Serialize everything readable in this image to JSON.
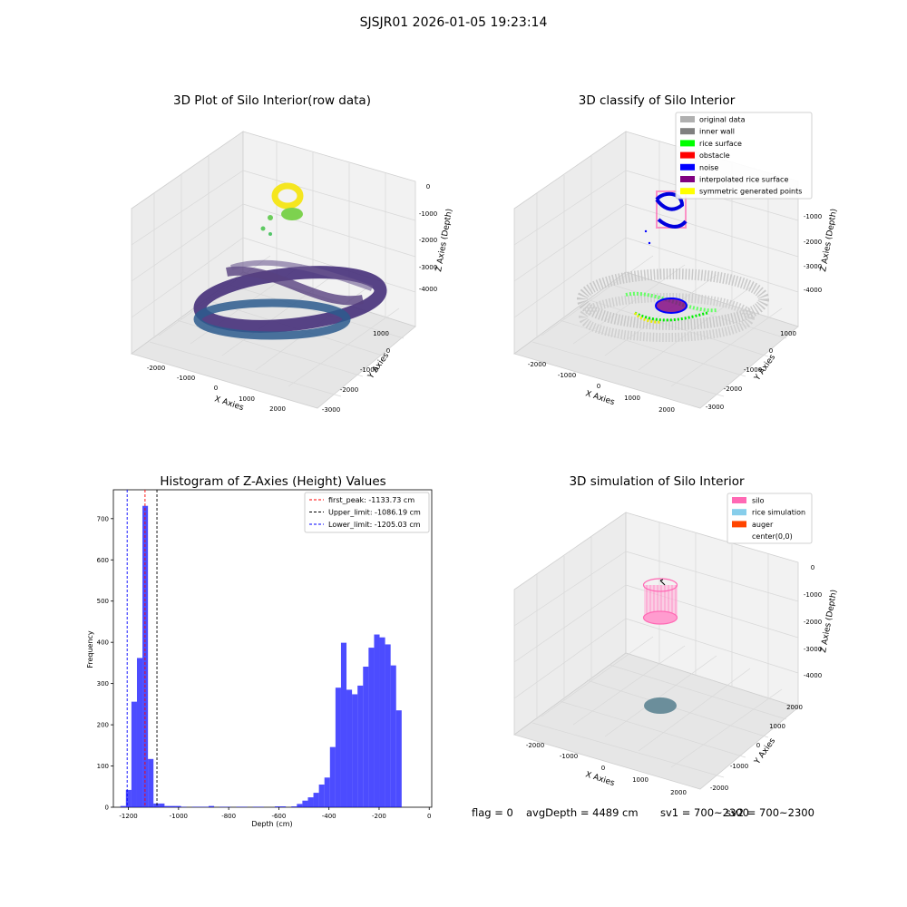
{
  "header": {
    "title": "SJSJR01 2026-01-05 19:23:14"
  },
  "panels": {
    "p1": {
      "title": "3D Plot of Silo Interior(row data)",
      "xlabel": "X Axies",
      "ylabel": "Y Axies",
      "zlabel": "Z Axies (Depth)",
      "xticks": [
        "-2000",
        "-1000",
        "0",
        "1000",
        "2000"
      ],
      "yticks": [
        "1000",
        "0",
        "-1000",
        "-2000",
        "-3000"
      ],
      "zticks": [
        "0",
        "-1000",
        "-2000",
        "-3000",
        "-4000"
      ]
    },
    "p2": {
      "title": "3D classify of Silo Interior",
      "xlabel": "X Axies",
      "ylabel": "Y Axies",
      "zlabel": "Z Axies (Depth)",
      "xticks": [
        "-2000",
        "-1000",
        "0",
        "1000",
        "2000"
      ],
      "yticks": [
        "1000",
        "0",
        "-1000",
        "-2000",
        "-3000"
      ],
      "zticks": [
        "-1000",
        "-2000",
        "-3000",
        "-4000"
      ],
      "legend": [
        {
          "label": "original data",
          "color": "#b0b0b0"
        },
        {
          "label": "inner wall",
          "color": "#808080"
        },
        {
          "label": "rice surface",
          "color": "#00ff00"
        },
        {
          "label": "obstacle",
          "color": "#ff0000"
        },
        {
          "label": "noise",
          "color": "#0000ff"
        },
        {
          "label": "interpolated rice surface",
          "color": "#800080"
        },
        {
          "label": "symmetric generated points",
          "color": "#ffff00"
        }
      ]
    },
    "p4": {
      "title": "3D simulation of Silo Interior",
      "xlabel": "X Axies",
      "ylabel": "Y Axies",
      "zlabel": "Z Axies (Depth)",
      "xticks": [
        "-2000",
        "-1000",
        "0",
        "1000",
        "2000"
      ],
      "yticks": [
        "2000",
        "1000",
        "0",
        "-1000",
        "-2000"
      ],
      "zticks": [
        "0",
        "-1000",
        "-2000",
        "-3000",
        "-4000"
      ],
      "legend": [
        {
          "label": "silo",
          "color": "#ff69b4"
        },
        {
          "label": "rice simulation",
          "color": "#87ceeb"
        },
        {
          "label": "auger",
          "color": "#ff4500"
        },
        {
          "label": "center(0,0)",
          "color": "#ffffff"
        }
      ]
    }
  },
  "chart_data": {
    "type": "bar",
    "title": "Histogram of Z-Axies (Height) Values",
    "xlabel": "Depth (cm)",
    "ylabel": "Frequency",
    "xlim": [
      -1260,
      10
    ],
    "ylim": [
      0,
      770
    ],
    "xticks": [
      -1200,
      -1000,
      -800,
      -600,
      -400,
      -200,
      0
    ],
    "yticks": [
      0,
      100,
      200,
      300,
      400,
      500,
      600,
      700
    ],
    "bar_color": "#0000ff",
    "bins": [
      {
        "x0": -1232,
        "x1": -1210,
        "value": 3
      },
      {
        "x0": -1210,
        "x1": -1188,
        "value": 42
      },
      {
        "x0": -1188,
        "x1": -1166,
        "value": 256
      },
      {
        "x0": -1166,
        "x1": -1144,
        "value": 362
      },
      {
        "x0": -1144,
        "x1": -1122,
        "value": 731
      },
      {
        "x0": -1122,
        "x1": -1100,
        "value": 117
      },
      {
        "x0": -1100,
        "x1": -1078,
        "value": 9
      },
      {
        "x0": -1078,
        "x1": -1056,
        "value": 9
      },
      {
        "x0": -1056,
        "x1": -1034,
        "value": 3
      },
      {
        "x0": -1034,
        "x1": -1012,
        "value": 3
      },
      {
        "x0": -1012,
        "x1": -990,
        "value": 3
      },
      {
        "x0": -990,
        "x1": -968,
        "value": 1
      },
      {
        "x0": -946,
        "x1": -924,
        "value": 1
      },
      {
        "x0": -924,
        "x1": -902,
        "value": 1
      },
      {
        "x0": -902,
        "x1": -880,
        "value": 1
      },
      {
        "x0": -880,
        "x1": -858,
        "value": 3
      },
      {
        "x0": -836,
        "x1": -814,
        "value": 1
      },
      {
        "x0": -814,
        "x1": -792,
        "value": 1
      },
      {
        "x0": -770,
        "x1": -748,
        "value": 1
      },
      {
        "x0": -748,
        "x1": -726,
        "value": 1
      },
      {
        "x0": -704,
        "x1": -682,
        "value": 1
      },
      {
        "x0": -682,
        "x1": -660,
        "value": 1
      },
      {
        "x0": -616,
        "x1": -594,
        "value": 2
      },
      {
        "x0": -594,
        "x1": -572,
        "value": 2
      },
      {
        "x0": -550,
        "x1": -528,
        "value": 2
      },
      {
        "x0": -528,
        "x1": -506,
        "value": 8
      },
      {
        "x0": -506,
        "x1": -484,
        "value": 16
      },
      {
        "x0": -484,
        "x1": -462,
        "value": 24
      },
      {
        "x0": -462,
        "x1": -440,
        "value": 35
      },
      {
        "x0": -440,
        "x1": -418,
        "value": 55
      },
      {
        "x0": -418,
        "x1": -396,
        "value": 72
      },
      {
        "x0": -396,
        "x1": -374,
        "value": 146
      },
      {
        "x0": -374,
        "x1": -352,
        "value": 290
      },
      {
        "x0": -352,
        "x1": -330,
        "value": 399
      },
      {
        "x0": -330,
        "x1": -308,
        "value": 285
      },
      {
        "x0": -308,
        "x1": -286,
        "value": 274
      },
      {
        "x0": -286,
        "x1": -264,
        "value": 295
      },
      {
        "x0": -264,
        "x1": -242,
        "value": 341
      },
      {
        "x0": -242,
        "x1": -220,
        "value": 387
      },
      {
        "x0": -220,
        "x1": -198,
        "value": 419
      },
      {
        "x0": -198,
        "x1": -176,
        "value": 412
      },
      {
        "x0": -176,
        "x1": -154,
        "value": 395
      },
      {
        "x0": -154,
        "x1": -132,
        "value": 344
      },
      {
        "x0": -132,
        "x1": -110,
        "value": 235
      }
    ],
    "vlines": [
      {
        "x": -1133.73,
        "color": "#ff0000",
        "label": "first_peak: -1133.73 cm"
      },
      {
        "x": -1086.19,
        "color": "#000000",
        "label": "Upper_limit: -1086.19 cm"
      },
      {
        "x": -1205.03,
        "color": "#0000ff",
        "label": "Lower_limit: -1205.03 cm"
      }
    ],
    "legend_position": "top-right"
  },
  "status": {
    "flag": "flag = 0",
    "avg_depth": "avgDepth = 4489 cm",
    "sv1": "sv1 = 700~2300",
    "sv2": "sv2 = 700~2300"
  }
}
